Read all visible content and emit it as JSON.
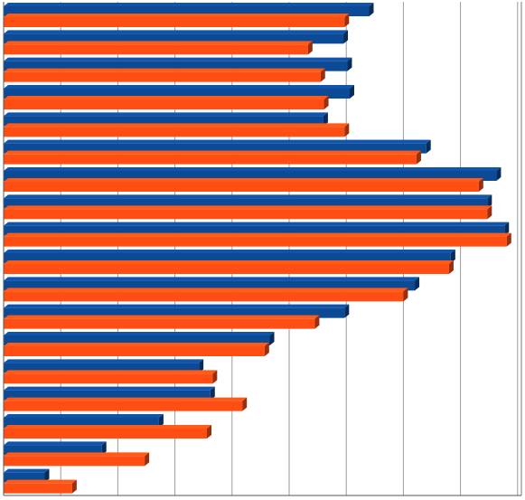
{
  "chart_data": {
    "type": "bar",
    "orientation": "horizontal",
    "three_d": true,
    "grid": true,
    "legend": "none",
    "title": "",
    "xlabel": "",
    "ylabel": "",
    "xlim": [
      0,
      9
    ],
    "categories": [
      "",
      "",
      "",
      "",
      "",
      "",
      "",
      "",
      "",
      "",
      "",
      "",
      "",
      "",
      "",
      "",
      "",
      ""
    ],
    "series": [
      {
        "color": "#0d4a96",
        "values": [
          6.4,
          5.95,
          6.02,
          6.06,
          5.6,
          7.4,
          8.63,
          8.47,
          8.77,
          7.83,
          7.2,
          5.97,
          4.66,
          3.42,
          3.62,
          2.72,
          1.72,
          0.72
        ]
      },
      {
        "color": "#ff4e14",
        "values": [
          5.97,
          5.33,
          5.55,
          5.61,
          5.97,
          7.23,
          8.32,
          8.47,
          8.81,
          7.8,
          7.0,
          5.45,
          4.57,
          3.66,
          4.18,
          3.56,
          2.47,
          1.2
        ]
      }
    ]
  }
}
